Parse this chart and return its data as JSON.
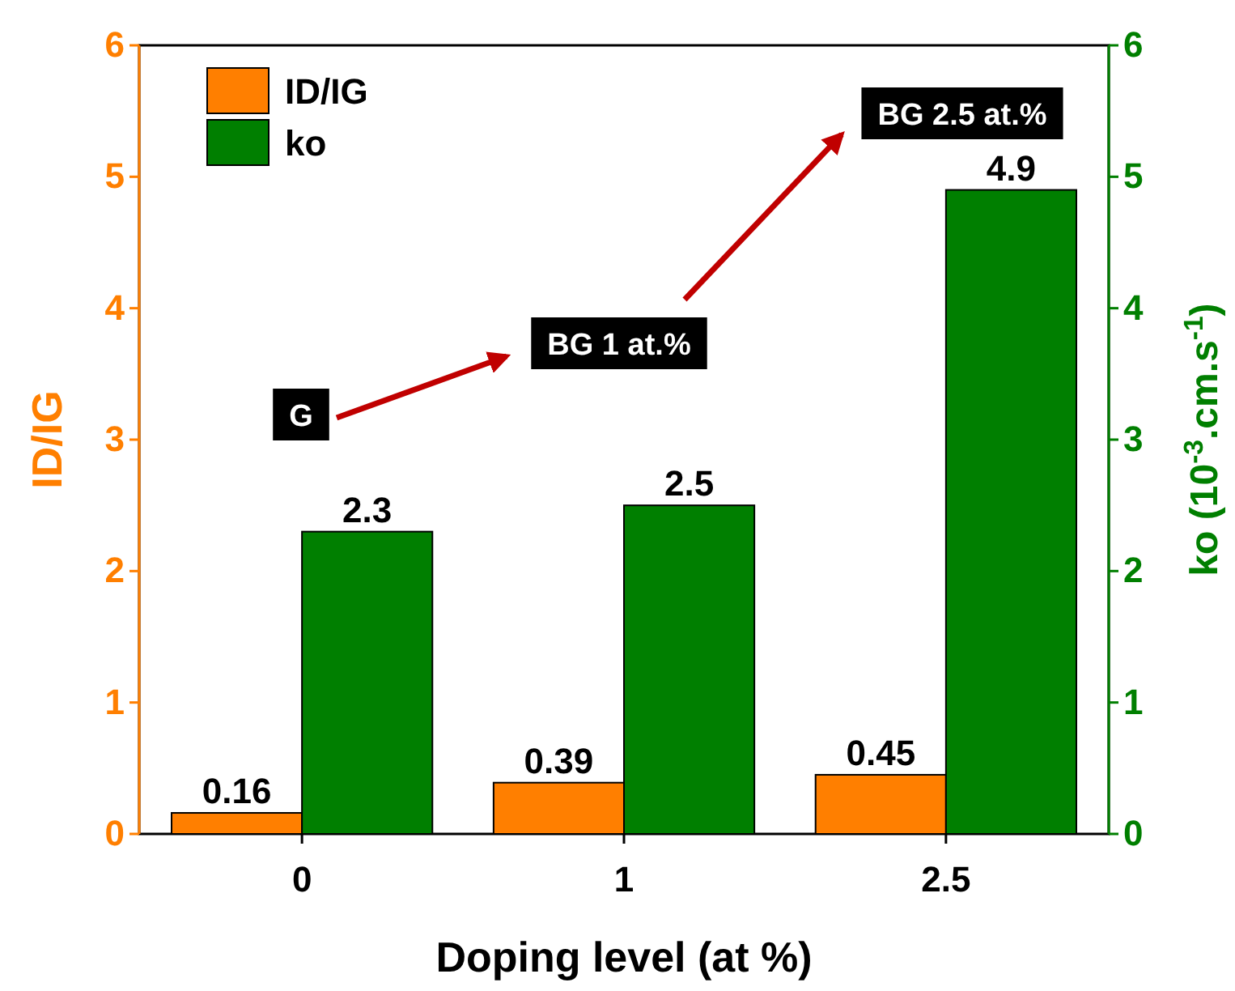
{
  "chart_data": {
    "type": "bar",
    "xlabel": "Doping level (at %)",
    "ylabel": "ID/IG",
    "y2label": "ko (10$^{-3}$.cm.s$^{-1}$)",
    "categories": [
      "0",
      "1",
      "2.5"
    ],
    "series": [
      {
        "name": "ID/IG",
        "color": "#ff7f00",
        "values": [
          0.16,
          0.39,
          0.45
        ]
      },
      {
        "name": "ko",
        "color": "#007f00",
        "values": [
          2.3,
          2.5,
          4.9
        ],
        "axis": "y2"
      }
    ],
    "ylim": [
      0,
      6
    ],
    "yticks": [
      0,
      1,
      2,
      3,
      4,
      5,
      6
    ],
    "y2lim": [
      0,
      6
    ],
    "y2ticks": [
      0,
      1,
      2,
      3,
      4,
      5,
      6
    ],
    "data_labels": true,
    "legend": "top left",
    "annotations": [
      "G",
      "BG 1 at.%",
      "BG 2.5 at.%"
    ]
  }
}
